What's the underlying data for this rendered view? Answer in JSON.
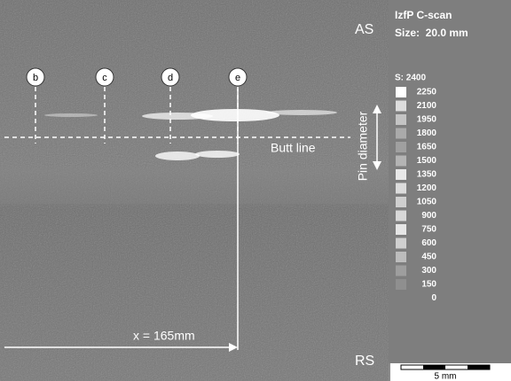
{
  "image": {
    "top_label": "AS",
    "bottom_label": "RS",
    "markers": [
      "b",
      "c",
      "d",
      "e"
    ],
    "butt_line": "Butt line",
    "pin_diameter": "Pin diameter",
    "position": "x = 165mm"
  },
  "panel": {
    "title": "IzfP C-scan",
    "size": "Size:  20.0 mm",
    "scale_max": "S: 2400",
    "legend": [
      "2250",
      "2100",
      "1950",
      "1800",
      "1650",
      "1500",
      "1350",
      "1200",
      "1050",
      "900",
      "750",
      "600",
      "450",
      "300",
      "150",
      "0"
    ],
    "scale_bar": "5 mm"
  }
}
